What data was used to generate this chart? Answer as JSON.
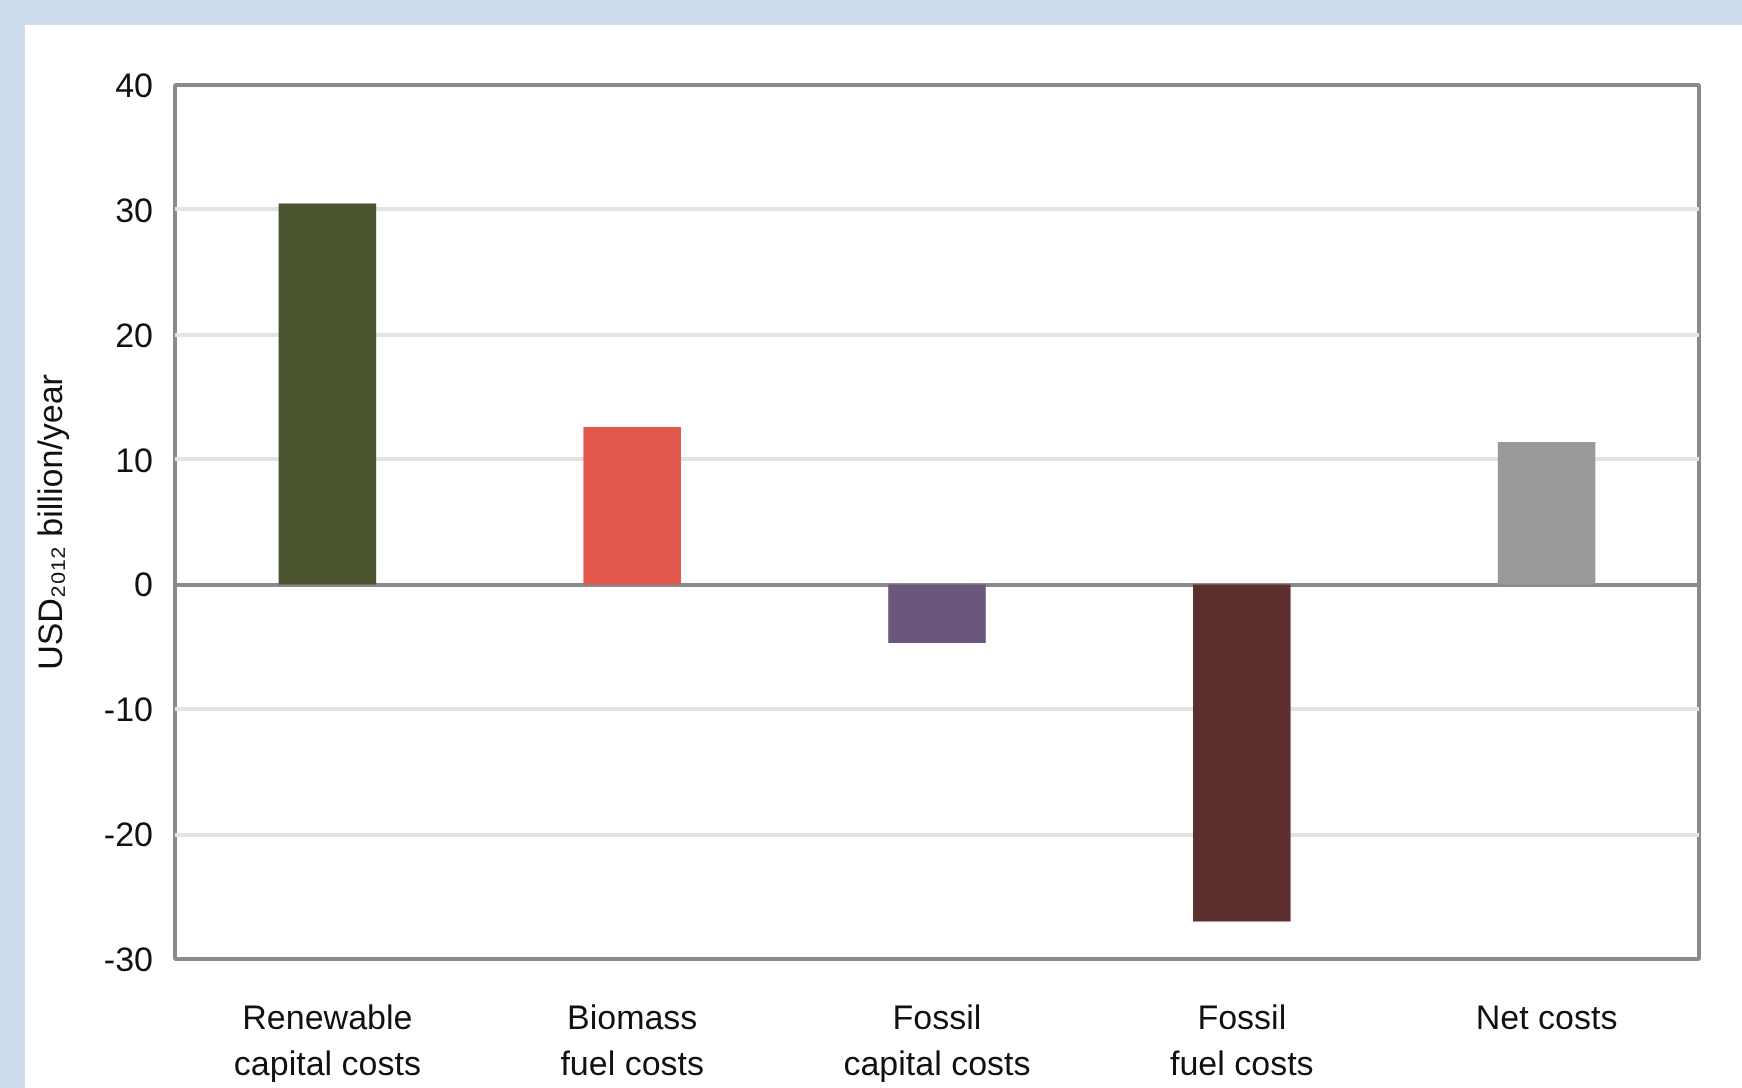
{
  "chart_data": {
    "type": "bar",
    "ylabel": "USD₂₀₁₂ billion/year",
    "categories": [
      "Renewable\ncapital costs",
      "Biomass\nfuel costs",
      "Fossil\ncapital costs",
      "Fossil\nfuel costs",
      "Net costs"
    ],
    "values": [
      30.5,
      12.6,
      -4.7,
      -27.0,
      11.4
    ],
    "colors": [
      "#4a5530",
      "#e2574c",
      "#6c577c",
      "#5c302e",
      "#999999"
    ],
    "ylim": [
      -30,
      40
    ],
    "yticks": [
      -30,
      -20,
      -10,
      0,
      10,
      20,
      30,
      40
    ],
    "grid": "y"
  }
}
